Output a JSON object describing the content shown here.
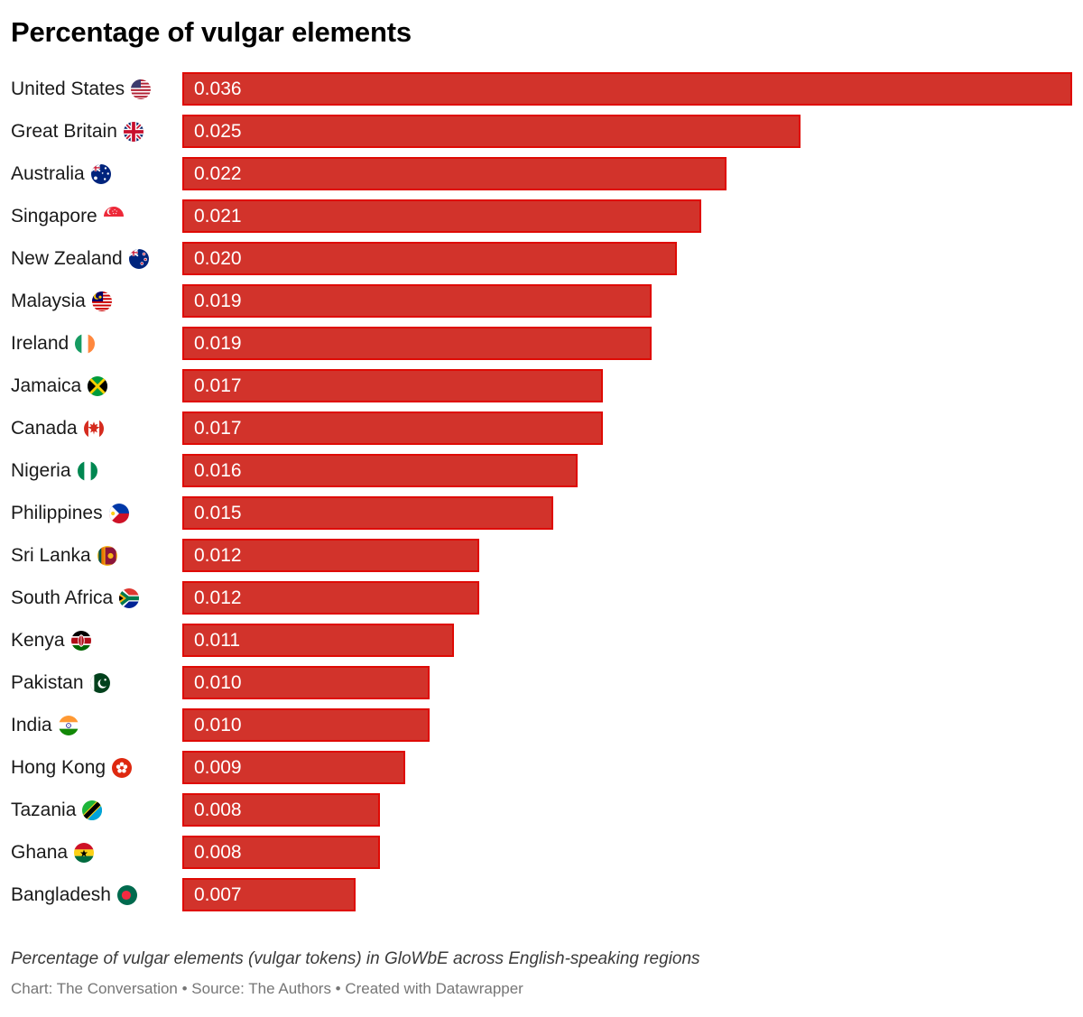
{
  "header": {
    "title": "Percentage of vulgar elements"
  },
  "chart_data": {
    "type": "bar",
    "orientation": "horizontal",
    "title": "Percentage of vulgar elements",
    "categories": [
      "United States",
      "Great Britain",
      "Australia",
      "Singapore",
      "New Zealand",
      "Malaysia",
      "Ireland",
      "Jamaica",
      "Canada",
      "Nigeria",
      "Philippines",
      "Sri Lanka",
      "South Africa",
      "Kenya",
      "Pakistan",
      "India",
      "Hong Kong",
      "Tazania",
      "Ghana",
      "Bangladesh"
    ],
    "values": [
      0.036,
      0.025,
      0.022,
      0.021,
      0.02,
      0.019,
      0.019,
      0.017,
      0.017,
      0.016,
      0.015,
      0.012,
      0.012,
      0.011,
      0.01,
      0.01,
      0.009,
      0.008,
      0.008,
      0.007
    ],
    "value_labels": [
      "0.036",
      "0.025",
      "0.022",
      "0.021",
      "0.020",
      "0.019",
      "0.019",
      "0.017",
      "0.017",
      "0.016",
      "0.015",
      "0.012",
      "0.012",
      "0.011",
      "0.010",
      "0.010",
      "0.009",
      "0.008",
      "0.008",
      "0.007"
    ],
    "flag_icons": [
      "us-flag-icon",
      "gb-flag-icon",
      "au-flag-icon",
      "sg-flag-icon",
      "nz-flag-icon",
      "my-flag-icon",
      "ie-flag-icon",
      "jm-flag-icon",
      "ca-flag-icon",
      "ng-flag-icon",
      "ph-flag-icon",
      "lk-flag-icon",
      "za-flag-icon",
      "ke-flag-icon",
      "pk-flag-icon",
      "in-flag-icon",
      "hk-flag-icon",
      "tz-flag-icon",
      "gh-flag-icon",
      "bd-flag-icon"
    ],
    "xlim": [
      0,
      0.036
    ],
    "grid": false,
    "legend": "none",
    "xlabel": "",
    "ylabel": "",
    "bar_color": "#d2332b",
    "bar_border_color": "#df0a04",
    "value_label_color": "#ffffff"
  },
  "caption": "Percentage of vulgar elements (vulgar tokens) in GloWbE across English-speaking regions",
  "footer": "Chart: The Conversation • Source: The Authors • Created with Datawrapper"
}
